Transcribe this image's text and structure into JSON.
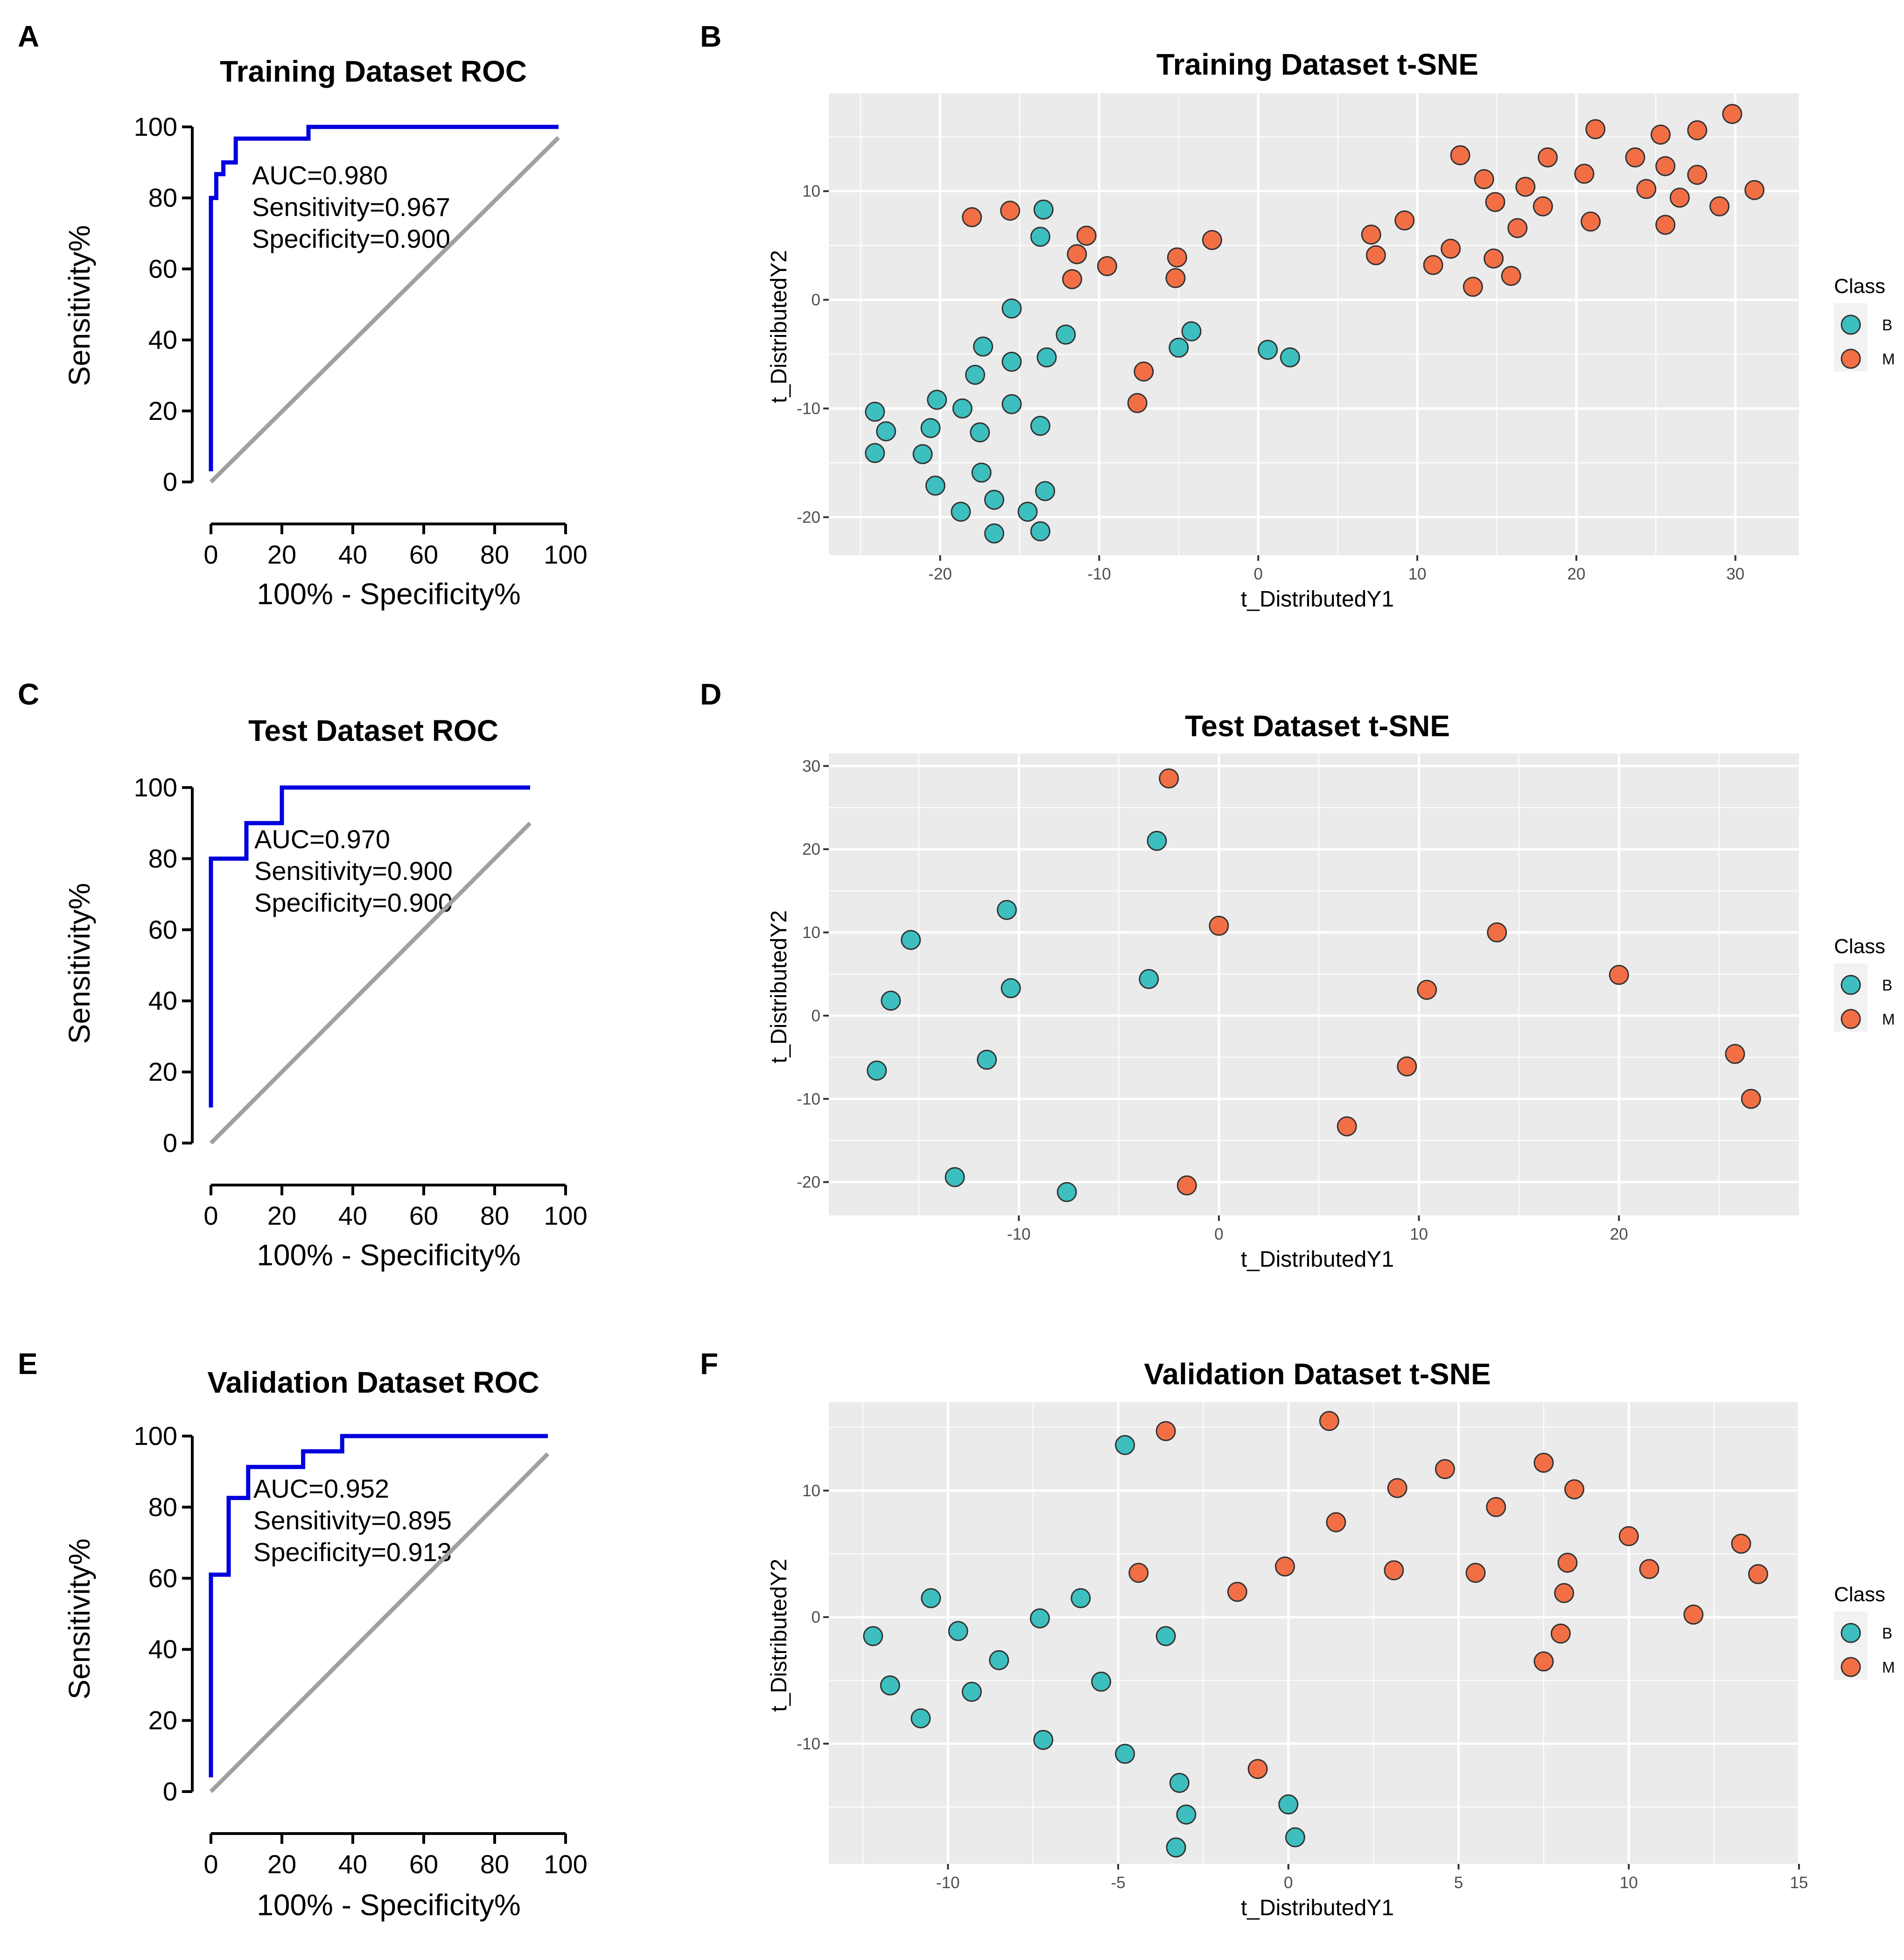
{
  "colors": {
    "roc_curve": "#0000dd",
    "diagonal": "#a0a0a0",
    "class_B": "#3dbfbf",
    "class_M": "#f26f45",
    "panel_bg": "#ebebeb",
    "grid": "#ffffff",
    "point_stroke": "#333333"
  },
  "chart_data": [
    {
      "id": "A",
      "type": "line",
      "panel_label": "A",
      "title": "Training Dataset ROC",
      "xlabel": "100% - Specificity%",
      "ylabel": "Sensitivity%",
      "xlim": [
        0,
        100
      ],
      "ylim": [
        0,
        100
      ],
      "xticks": [
        0,
        20,
        40,
        60,
        80,
        100
      ],
      "yticks": [
        0,
        20,
        40,
        60,
        80,
        100
      ],
      "annotations": [
        "AUC=0.980",
        "Sensitivity=0.967",
        "Specificity=0.900"
      ],
      "series": [
        {
          "name": "roc",
          "x": [
            0,
            0,
            1.5,
            1.5,
            3.5,
            3.5,
            7,
            7,
            10,
            10,
            27.5,
            27.5,
            98
          ],
          "y": [
            3,
            80,
            80,
            86.7,
            86.7,
            90,
            90,
            96.7,
            96.7,
            96.7,
            96.7,
            100,
            100
          ]
        },
        {
          "name": "reference",
          "x": [
            0,
            98
          ],
          "y": [
            0,
            97
          ]
        }
      ]
    },
    {
      "id": "B",
      "type": "scatter",
      "panel_label": "B",
      "title": "Training Dataset t-SNE",
      "xlabel": "t_DistributedY1",
      "ylabel": "t_DistributedY2",
      "xlim": [
        -27,
        34
      ],
      "ylim": [
        -23.5,
        19
      ],
      "xticks": [
        -20,
        -10,
        0,
        10,
        20,
        30
      ],
      "yticks": [
        -20,
        -10,
        0,
        10
      ],
      "legend_title": "Class",
      "legend_position": "right",
      "legend": [
        "B",
        "M"
      ],
      "points": {
        "B": [
          [
            -13.5,
            8.3
          ],
          [
            -13.7,
            5.8
          ],
          [
            -15.5,
            -0.8
          ],
          [
            -17.3,
            -4.3
          ],
          [
            -15.5,
            -5.7
          ],
          [
            -13.3,
            -5.3
          ],
          [
            -12.1,
            -3.2
          ],
          [
            -17.8,
            -6.9
          ],
          [
            -18.6,
            -10
          ],
          [
            -15.5,
            -9.6
          ],
          [
            -20.2,
            -9.2
          ],
          [
            -24.1,
            -10.3
          ],
          [
            -23.4,
            -12.1
          ],
          [
            -20.6,
            -11.8
          ],
          [
            -17.5,
            -12.2
          ],
          [
            -13.7,
            -11.6
          ],
          [
            -21.1,
            -14.2
          ],
          [
            -24.1,
            -14.1
          ],
          [
            -17.4,
            -15.9
          ],
          [
            -20.3,
            -17.1
          ],
          [
            -16.6,
            -18.4
          ],
          [
            -13.4,
            -17.6
          ],
          [
            -18.7,
            -19.5
          ],
          [
            -14.5,
            -19.5
          ],
          [
            -16.6,
            -21.5
          ],
          [
            -13.7,
            -21.3
          ],
          [
            -4.2,
            -2.9
          ],
          [
            -5,
            -4.4
          ],
          [
            0.6,
            -4.6
          ],
          [
            2,
            -5.3
          ]
        ],
        "M": [
          [
            -18,
            7.6
          ],
          [
            -15.6,
            8.2
          ],
          [
            -10.8,
            5.9
          ],
          [
            -11.4,
            4.2
          ],
          [
            -9.5,
            3.1
          ],
          [
            -11.7,
            1.9
          ],
          [
            -5.1,
            3.9
          ],
          [
            -5.2,
            2
          ],
          [
            -2.9,
            5.5
          ],
          [
            -7.2,
            -6.6
          ],
          [
            -7.6,
            -9.5
          ],
          [
            7.1,
            6
          ],
          [
            7.4,
            4.1
          ],
          [
            9.2,
            7.3
          ],
          [
            11,
            3.2
          ],
          [
            12.1,
            4.7
          ],
          [
            12.7,
            13.3
          ],
          [
            13.5,
            1.2
          ],
          [
            14.2,
            11.1
          ],
          [
            14.9,
            9
          ],
          [
            14.8,
            3.8
          ],
          [
            15.9,
            2.2
          ],
          [
            16.3,
            6.6
          ],
          [
            16.8,
            10.4
          ],
          [
            17.9,
            8.6
          ],
          [
            18.2,
            13.1
          ],
          [
            20.5,
            11.6
          ],
          [
            21.2,
            15.7
          ],
          [
            20.9,
            7.2
          ],
          [
            23.7,
            13.1
          ],
          [
            24.4,
            10.2
          ],
          [
            25.3,
            15.2
          ],
          [
            25.6,
            12.3
          ],
          [
            25.6,
            6.9
          ],
          [
            26.5,
            9.4
          ],
          [
            27.6,
            15.6
          ],
          [
            27.6,
            11.5
          ],
          [
            29,
            8.6
          ],
          [
            29.8,
            17.1
          ],
          [
            31.2,
            10.1
          ]
        ]
      }
    },
    {
      "id": "C",
      "type": "line",
      "panel_label": "C",
      "title": "Test Dataset ROC",
      "xlabel": "100% - Specificity%",
      "ylabel": "Sensitivity%",
      "xlim": [
        0,
        100
      ],
      "ylim": [
        0,
        100
      ],
      "xticks": [
        0,
        20,
        40,
        60,
        80,
        100
      ],
      "yticks": [
        0,
        20,
        40,
        60,
        80,
        100
      ],
      "annotations": [
        "AUC=0.970",
        "Sensitivity=0.900",
        "Specificity=0.900"
      ],
      "series": [
        {
          "name": "roc",
          "x": [
            0,
            0,
            10,
            10,
            20,
            20,
            90
          ],
          "y": [
            10,
            80,
            80,
            90,
            90,
            100,
            100
          ]
        },
        {
          "name": "reference",
          "x": [
            0,
            90
          ],
          "y": [
            0,
            90
          ]
        }
      ]
    },
    {
      "id": "D",
      "type": "scatter",
      "panel_label": "D",
      "title": "Test Dataset t-SNE",
      "xlabel": "t_DistributedY1",
      "ylabel": "t_DistributedY2",
      "xlim": [
        -19.5,
        29
      ],
      "ylim": [
        -24,
        31.5
      ],
      "xticks": [
        -10,
        0,
        10,
        20
      ],
      "yticks": [
        -20,
        -10,
        0,
        10,
        20,
        30
      ],
      "legend_title": "Class",
      "legend_position": "right",
      "legend": [
        "B",
        "M"
      ],
      "points": {
        "B": [
          [
            -3.1,
            21
          ],
          [
            -10.6,
            12.7
          ],
          [
            -15.4,
            9.1
          ],
          [
            -10.4,
            3.3
          ],
          [
            -3.5,
            4.4
          ],
          [
            -16.4,
            1.8
          ],
          [
            -17.1,
            -6.6
          ],
          [
            -11.6,
            -5.3
          ],
          [
            -13.2,
            -19.4
          ],
          [
            -7.6,
            -21.2
          ]
        ],
        "M": [
          [
            -2.5,
            28.5
          ],
          [
            0,
            10.8
          ],
          [
            13.9,
            10
          ],
          [
            10.4,
            3.1
          ],
          [
            20,
            4.9
          ],
          [
            9.4,
            -6.1
          ],
          [
            25.8,
            -4.6
          ],
          [
            26.6,
            -10
          ],
          [
            6.4,
            -13.3
          ],
          [
            -1.6,
            -20.4
          ]
        ]
      }
    },
    {
      "id": "E",
      "type": "line",
      "panel_label": "E",
      "title": "Validation Dataset ROC",
      "xlabel": "100% - Specificity%",
      "ylabel": "Sensitivity%",
      "xlim": [
        0,
        100
      ],
      "ylim": [
        0,
        100
      ],
      "xticks": [
        0,
        20,
        40,
        60,
        80,
        100
      ],
      "yticks": [
        0,
        20,
        40,
        60,
        80,
        100
      ],
      "annotations": [
        "AUC=0.952",
        "Sensitivity=0.895",
        "Specificity=0.913"
      ],
      "series": [
        {
          "name": "roc",
          "x": [
            0,
            0,
            5,
            5,
            10.5,
            10.5,
            26,
            26,
            37,
            37,
            95
          ],
          "y": [
            4,
            61,
            61,
            82.6,
            82.6,
            91.3,
            91.3,
            95.7,
            95.7,
            100,
            100
          ]
        },
        {
          "name": "reference",
          "x": [
            0,
            95
          ],
          "y": [
            0,
            95
          ]
        }
      ]
    },
    {
      "id": "F",
      "type": "scatter",
      "panel_label": "F",
      "title": "Validation Dataset t-SNE",
      "xlabel": "t_DistributedY1",
      "ylabel": "t_DistributedY2",
      "xlim": [
        -13.5,
        15
      ],
      "ylim": [
        -19.5,
        17
      ],
      "xticks": [
        -10,
        -5,
        0,
        5,
        10,
        15
      ],
      "yticks": [
        -10,
        0,
        10
      ],
      "legend_title": "Class",
      "legend_position": "right",
      "legend": [
        "B",
        "M"
      ],
      "points": {
        "B": [
          [
            -4.8,
            13.6
          ],
          [
            -10.5,
            1.5
          ],
          [
            -6.1,
            1.5
          ],
          [
            -7.3,
            -0.1
          ],
          [
            -9.7,
            -1.1
          ],
          [
            -3.6,
            -1.5
          ],
          [
            -12.2,
            -1.5
          ],
          [
            -8.5,
            -3.4
          ],
          [
            -11.7,
            -5.4
          ],
          [
            -9.3,
            -5.9
          ],
          [
            -5.5,
            -5.1
          ],
          [
            -10.8,
            -8
          ],
          [
            -7.2,
            -9.7
          ],
          [
            -4.8,
            -10.8
          ],
          [
            -3.2,
            -13.1
          ],
          [
            -3,
            -15.6
          ],
          [
            0,
            -14.8
          ],
          [
            -3.3,
            -18.2
          ],
          [
            0.2,
            -17.4
          ]
        ],
        "M": [
          [
            -3.6,
            14.7
          ],
          [
            1.2,
            15.5
          ],
          [
            7.5,
            12.2
          ],
          [
            4.6,
            11.7
          ],
          [
            3.2,
            10.2
          ],
          [
            8.4,
            10.1
          ],
          [
            6.1,
            8.7
          ],
          [
            1.4,
            7.5
          ],
          [
            10,
            6.4
          ],
          [
            13.3,
            5.8
          ],
          [
            -0.1,
            4
          ],
          [
            8.2,
            4.3
          ],
          [
            3.1,
            3.7
          ],
          [
            5.5,
            3.5
          ],
          [
            10.6,
            3.8
          ],
          [
            13.8,
            3.4
          ],
          [
            -4.4,
            3.5
          ],
          [
            -1.5,
            2
          ],
          [
            8.1,
            1.9
          ],
          [
            11.9,
            0.2
          ],
          [
            8,
            -1.3
          ],
          [
            7.5,
            -3.5
          ],
          [
            -0.9,
            -12
          ]
        ]
      }
    }
  ]
}
